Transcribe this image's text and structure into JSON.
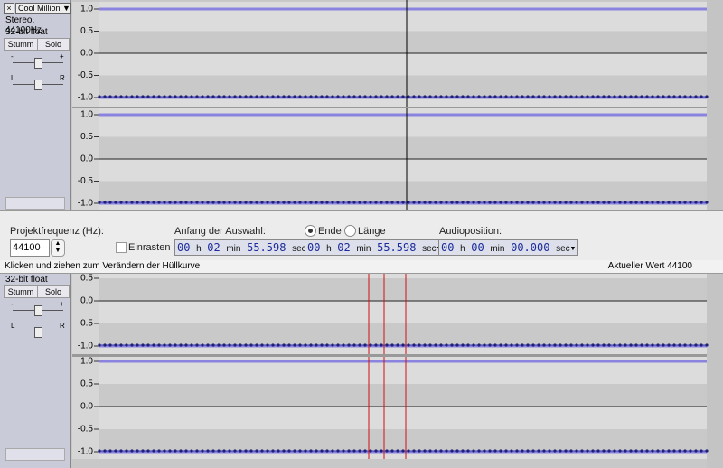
{
  "tracks": [
    {
      "name": "Cool Million",
      "info": [
        "Stereo, 44100Hz",
        "32-bit float"
      ],
      "mute": "Stumm",
      "solo": "Solo",
      "gain_labels": [
        "-",
        "+"
      ],
      "pan_labels": [
        "L",
        "R"
      ],
      "scale_labels": [
        "1.0",
        "0.5",
        "0.0",
        "-0.5",
        "-1.0"
      ]
    },
    {
      "info": [
        "32-bit float"
      ],
      "mute": "Stumm",
      "solo": "Solo",
      "gain_labels": [
        "-",
        "+"
      ],
      "pan_labels": [
        "L",
        "R"
      ],
      "scale_labels": [
        "1.0",
        "0.5",
        "0.0",
        "-0.5",
        "-1.0"
      ]
    }
  ],
  "toolbar": {
    "rate_label": "Projektfrequenz (Hz):",
    "rate": "44100",
    "snap": "Einrasten",
    "selection_start_label": "Anfang der Auswahl:",
    "end_option": "Ende",
    "length_option": "Länge",
    "audio_position_label": "Audioposition:",
    "units": [
      "h",
      "min",
      "sec"
    ],
    "selection_start": {
      "hours": "00",
      "minutes": "02",
      "seconds": "55.598"
    },
    "selection_end": {
      "hours": "00",
      "minutes": "02",
      "seconds": "55.598"
    },
    "audio_position": {
      "hours": "00",
      "minutes": "00",
      "seconds": "00.000"
    }
  },
  "status": {
    "message": "Klicken und ziehen zum Verändern der Hüllkurve",
    "value": "Aktueller Wert 44100"
  }
}
